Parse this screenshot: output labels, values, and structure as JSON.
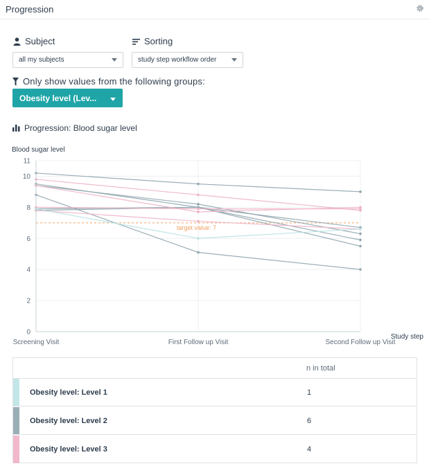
{
  "header": {
    "title": "Progression",
    "settings_icon": "gear-icon"
  },
  "subject": {
    "label": "Subject",
    "icon": "person-icon",
    "value": "all my subjects"
  },
  "sorting": {
    "label": "Sorting",
    "icon": "sort-lines-icon",
    "value": "study step workflow order"
  },
  "filter": {
    "label": "Only show values from the following groups:",
    "icon": "funnel-icon",
    "button_label": "Obesity level (Lev..."
  },
  "chart_heading": {
    "label": "Progression: Blood sugar level",
    "icon": "bar-chart-icon"
  },
  "chart_data": {
    "type": "line",
    "ylabel": "Blood sugar level",
    "xlabel": "Study step",
    "categories": [
      "Screening Visit",
      "First Follow up Visit",
      "Second Follow up Visit"
    ],
    "y_ticks": [
      0,
      2,
      4,
      6,
      8,
      10,
      11
    ],
    "ylim": [
      0,
      11
    ],
    "grid": true,
    "target": {
      "label": "target value: 7",
      "value": 7,
      "color": "#f0a060"
    },
    "series": [
      {
        "group": "Level 2",
        "color": "#8fa5ae",
        "values": [
          10.2,
          9.5,
          9.0
        ]
      },
      {
        "group": "Level 2",
        "color": "#8fa5ae",
        "values": [
          9.4,
          8.2,
          6.3
        ]
      },
      {
        "group": "Level 2",
        "color": "#8fa5ae",
        "values": [
          8.8,
          5.1,
          4.0
        ]
      },
      {
        "group": "Level 2",
        "color": "#8fa5ae",
        "values": [
          7.8,
          8.0,
          5.9
        ]
      },
      {
        "group": "Level 2",
        "color": "#8fa5ae",
        "values": [
          7.9,
          8.0,
          5.5
        ]
      },
      {
        "group": "Level 2",
        "color": "#8fa5ae",
        "values": [
          9.5,
          8.0,
          6.7
        ]
      },
      {
        "group": "Level 3",
        "color": "#eeb3c6",
        "values": [
          9.8,
          8.8,
          7.8
        ]
      },
      {
        "group": "Level 3",
        "color": "#eeb3c6",
        "values": [
          9.4,
          7.7,
          8.0
        ]
      },
      {
        "group": "Level 3",
        "color": "#eeb3c6",
        "values": [
          8.0,
          7.9,
          7.9
        ]
      },
      {
        "group": "Level 3",
        "color": "#eeb3c6",
        "values": [
          7.8,
          7.1,
          6.6
        ]
      },
      {
        "group": "Level 1",
        "color": "#b8e2e3",
        "values": [
          7.9,
          6.0,
          6.6
        ]
      }
    ]
  },
  "legend_table": {
    "header": "n in total",
    "rows": [
      {
        "label": "Obesity level:  Level 1",
        "count": "1",
        "color": "#c3e6e7"
      },
      {
        "label": "Obesity level:  Level 2",
        "count": "6",
        "color": "#9aaeb6"
      },
      {
        "label": "Obesity level:  Level 3",
        "count": "4",
        "color": "#f2b8cb"
      }
    ]
  }
}
